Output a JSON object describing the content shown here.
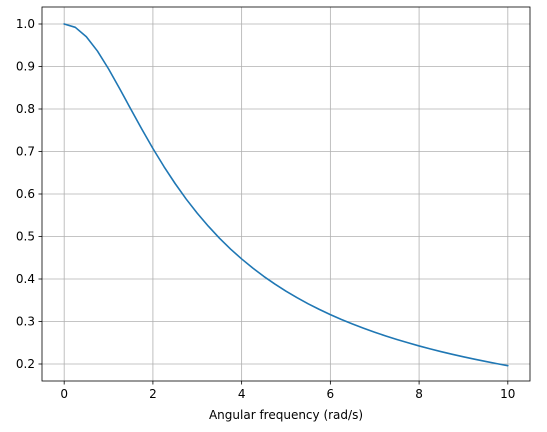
{
  "chart_data": {
    "type": "line",
    "title": "",
    "xlabel": "Angular frequency (rad/s)",
    "ylabel": "",
    "xlim": [
      -0.5,
      10.5
    ],
    "ylim": [
      0.16,
      1.04
    ],
    "grid": true,
    "legend": "none",
    "x_ticks": [
      0,
      2,
      4,
      6,
      8,
      10
    ],
    "x_tick_labels": [
      "0",
      "2",
      "4",
      "6",
      "8",
      "10"
    ],
    "y_ticks": [
      0.2,
      0.3,
      0.4,
      0.5,
      0.6,
      0.7,
      0.8,
      0.9,
      1.0
    ],
    "y_tick_labels": [
      "0.2",
      "0.3",
      "0.4",
      "0.5",
      "0.6",
      "0.7",
      "0.8",
      "0.9",
      "1.0"
    ],
    "series": [
      {
        "color": "#1f77b4",
        "x": [
          0,
          0.25,
          0.5,
          0.75,
          1.0,
          1.25,
          1.5,
          1.75,
          2.0,
          2.25,
          2.5,
          2.75,
          3.0,
          3.25,
          3.5,
          3.75,
          4.0,
          4.25,
          4.5,
          4.75,
          5.0,
          5.25,
          5.5,
          5.75,
          6.0,
          6.25,
          6.5,
          6.75,
          7.0,
          7.25,
          7.5,
          7.75,
          8.0,
          8.25,
          8.5,
          8.75,
          9.0,
          9.25,
          9.5,
          9.75,
          10.0
        ],
        "y": [
          1.0,
          0.9922,
          0.9701,
          0.9363,
          0.8944,
          0.848,
          0.8,
          0.7526,
          0.7071,
          0.6644,
          0.6247,
          0.5881,
          0.5547,
          0.5242,
          0.4961,
          0.4705,
          0.4472,
          0.4258,
          0.4061,
          0.3881,
          0.3714,
          0.356,
          0.3417,
          0.3285,
          0.3162,
          0.3048,
          0.2941,
          0.2841,
          0.2747,
          0.2659,
          0.2577,
          0.2499,
          0.2425,
          0.2356,
          0.229,
          0.2228,
          0.2169,
          0.2113,
          0.206,
          0.2009,
          0.1961
        ]
      }
    ]
  }
}
